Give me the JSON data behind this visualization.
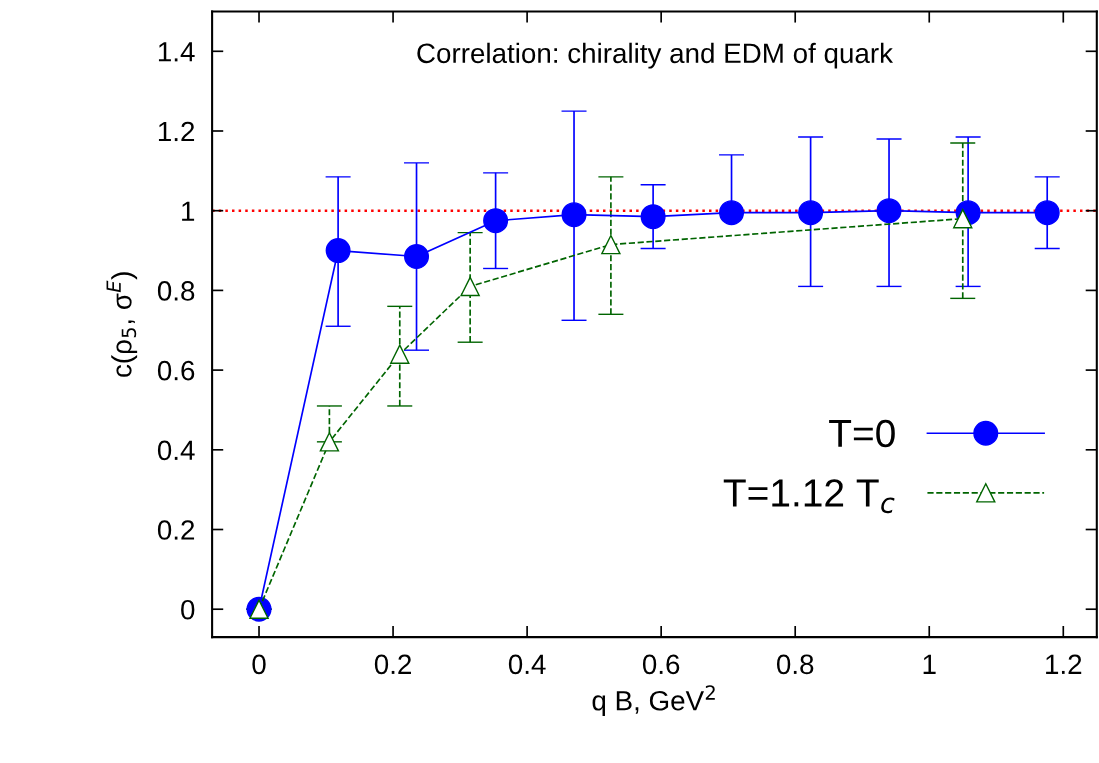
{
  "chart_data": {
    "type": "line",
    "title": "Correlation: chirality and EDM of quark",
    "xlabel": "q B, GeV$^{2}$",
    "ylabel": "c(ρ$_{5}$, σ$^{E}$)",
    "series": [
      {
        "name": "T=0",
        "color": "#0000ff",
        "marker": "circle",
        "line_style": "solid",
        "x": [
          0,
          0.118,
          0.235,
          0.353,
          0.47,
          0.588,
          0.705,
          0.823,
          0.94,
          1.058,
          1.176
        ],
        "values": [
          0,
          0.9,
          0.885,
          0.975,
          0.99,
          0.985,
          0.995,
          0.995,
          1.0,
          0.995,
          0.995
        ],
        "errors": [
          null,
          [
            0.71,
            1.085
          ],
          [
            0.65,
            1.12
          ],
          [
            0.855,
            1.095
          ],
          [
            0.725,
            1.25
          ],
          [
            0.905,
            1.065
          ],
          [
            0.995,
            1.14
          ],
          [
            0.81,
            1.185
          ],
          [
            0.81,
            1.18
          ],
          [
            0.81,
            1.185
          ],
          [
            0.905,
            1.085
          ]
        ]
      },
      {
        "name": "T=1.12 T$_{c}$",
        "color": "#006400",
        "marker": "triangle",
        "line_style": "dashed",
        "x": [
          0,
          0.105,
          0.21,
          0.315,
          0.525,
          1.05
        ],
        "values": [
          0,
          0.42,
          0.64,
          0.81,
          0.915,
          0.98
        ],
        "errors": [
          null,
          [
            0.42,
            0.51
          ],
          [
            0.51,
            0.76
          ],
          [
            0.67,
            0.945
          ],
          [
            0.74,
            1.085
          ],
          [
            0.78,
            1.17
          ]
        ]
      }
    ],
    "ref_lines": [
      {
        "axis": "y",
        "value": 1,
        "color": "#ff0000",
        "line_style": "dotted"
      }
    ],
    "xlim": [
      -0.07,
      1.25
    ],
    "xticks": [
      0,
      0.2,
      0.4,
      0.6,
      0.8,
      1,
      1.2
    ],
    "ylim": [
      -0.07,
      1.5
    ],
    "yticks": [
      0,
      0.2,
      0.4,
      0.6,
      0.8,
      1,
      1.2,
      1.4
    ],
    "grid": false,
    "legend": "lower right"
  }
}
